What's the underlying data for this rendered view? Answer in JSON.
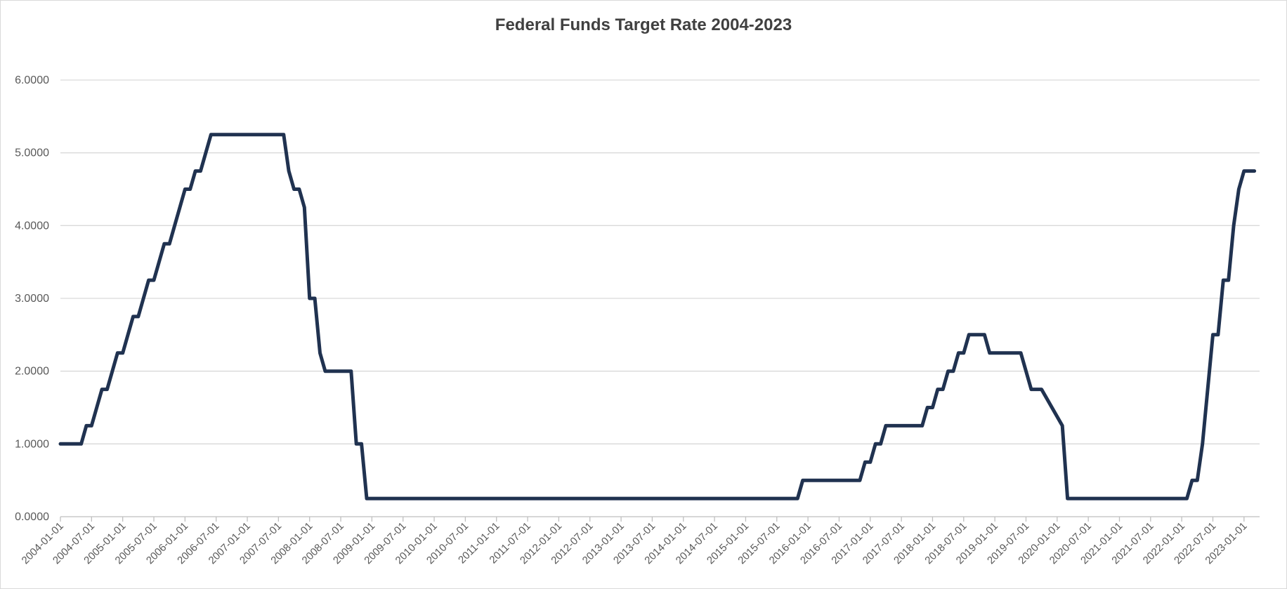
{
  "chart_data": {
    "type": "line",
    "title": "Federal Funds Target Rate 2004-2023",
    "xlabel": "",
    "ylabel": "",
    "ylim": [
      0,
      6
    ],
    "yticks": [
      0,
      1,
      2,
      3,
      4,
      5,
      6
    ],
    "ytick_labels": [
      "0.0000",
      "1.0000",
      "2.0000",
      "3.0000",
      "4.0000",
      "5.0000",
      "6.0000"
    ],
    "xlim": [
      "2004-01-01",
      "2023-04-01"
    ],
    "x_tick_labels": [
      "2004-01-01",
      "2004-07-01",
      "2005-01-01",
      "2005-07-01",
      "2006-01-01",
      "2006-07-01",
      "2007-01-01",
      "2007-07-01",
      "2008-01-01",
      "2008-07-01",
      "2009-01-01",
      "2009-07-01",
      "2010-01-01",
      "2010-07-01",
      "2011-01-01",
      "2011-07-01",
      "2012-01-01",
      "2012-07-01",
      "2013-01-01",
      "2013-07-01",
      "2014-01-01",
      "2014-07-01",
      "2015-01-01",
      "2015-07-01",
      "2016-01-01",
      "2016-07-01",
      "2017-01-01",
      "2017-07-01",
      "2018-01-01",
      "2018-07-01",
      "2019-01-01",
      "2019-07-01",
      "2020-01-01",
      "2020-07-01",
      "2021-01-01",
      "2021-07-01",
      "2022-01-01",
      "2022-07-01",
      "2023-01-01"
    ],
    "grid": true,
    "legend": "none",
    "line_color": "#203250",
    "series": [
      {
        "x": [
          "2004-01-01",
          "2004-05-01",
          "2004-06-01",
          "2004-07-01",
          "2004-08-01",
          "2004-09-01",
          "2004-10-01",
          "2004-11-01",
          "2004-12-01",
          "2005-01-01",
          "2005-02-01",
          "2005-03-01",
          "2005-04-01",
          "2005-05-01",
          "2005-06-01",
          "2005-07-01",
          "2005-08-01",
          "2005-09-01",
          "2005-10-01",
          "2005-11-01",
          "2005-12-01",
          "2006-01-01",
          "2006-02-01",
          "2006-03-01",
          "2006-04-01",
          "2006-05-01",
          "2006-06-01",
          "2006-07-01",
          "2007-08-01",
          "2007-09-01",
          "2007-10-01",
          "2007-11-01",
          "2007-12-01",
          "2008-01-01",
          "2008-02-01",
          "2008-03-01",
          "2008-04-01",
          "2008-05-01",
          "2008-09-01",
          "2008-10-01",
          "2008-11-01",
          "2008-12-01",
          "2015-11-01",
          "2015-12-01",
          "2016-11-01",
          "2016-12-01",
          "2017-01-01",
          "2017-02-01",
          "2017-03-01",
          "2017-04-01",
          "2017-05-01",
          "2017-06-01",
          "2017-11-01",
          "2017-12-01",
          "2018-01-01",
          "2018-02-01",
          "2018-03-01",
          "2018-04-01",
          "2018-05-01",
          "2018-06-01",
          "2018-07-01",
          "2018-08-01",
          "2018-09-01",
          "2018-10-01",
          "2018-11-01",
          "2018-12-01",
          "2019-06-01",
          "2019-07-01",
          "2019-08-01",
          "2019-09-01",
          "2019-10-01",
          "2020-02-01",
          "2020-03-01",
          "2020-04-01",
          "2022-02-01",
          "2022-03-01",
          "2022-04-01",
          "2022-05-01",
          "2022-06-01",
          "2022-07-01",
          "2022-08-01",
          "2022-09-01",
          "2022-10-01",
          "2022-11-01",
          "2022-12-01",
          "2023-01-01",
          "2023-02-01",
          "2023-03-01"
        ],
        "y": [
          1.0,
          1.0,
          1.25,
          1.25,
          1.5,
          1.75,
          1.75,
          2.0,
          2.25,
          2.25,
          2.5,
          2.75,
          2.75,
          3.0,
          3.25,
          3.25,
          3.5,
          3.75,
          3.75,
          4.0,
          4.25,
          4.5,
          4.5,
          4.75,
          4.75,
          5.0,
          5.25,
          5.25,
          5.25,
          4.75,
          4.5,
          4.5,
          4.25,
          3.0,
          3.0,
          2.25,
          2.0,
          2.0,
          2.0,
          1.0,
          1.0,
          0.25,
          0.25,
          0.5,
          0.5,
          0.75,
          0.75,
          1.0,
          1.0,
          1.25,
          1.25,
          1.25,
          1.25,
          1.5,
          1.5,
          1.75,
          1.75,
          2.0,
          2.0,
          2.25,
          2.25,
          2.5,
          2.5,
          2.5,
          2.5,
          2.25,
          2.25,
          2.0,
          1.75,
          1.75,
          1.75,
          1.25,
          0.25,
          0.25,
          0.25,
          0.5,
          0.5,
          1.0,
          1.75,
          2.5,
          2.5,
          3.25,
          3.25,
          4.0,
          4.5,
          4.75,
          4.75,
          4.75
        ]
      }
    ]
  }
}
